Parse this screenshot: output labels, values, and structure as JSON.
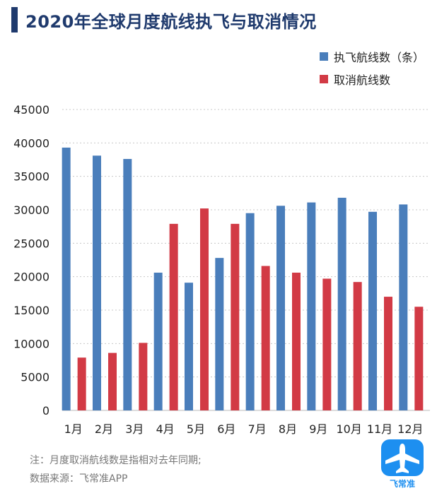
{
  "title": "2020年全球月度航线执飞与取消情况",
  "legend": [
    {
      "label": "执飞航线数（条）",
      "color": "#4a7ebb"
    },
    {
      "label": "取消航线数",
      "color": "#d23a45"
    }
  ],
  "footnote": {
    "note": "注：月度取消航线数是指相对去年同期;",
    "source": "数据来源：飞常准APP"
  },
  "logo": {
    "text": "飞常准",
    "icon": "airplane-icon"
  },
  "chart_data": {
    "type": "bar",
    "title": "2020年全球月度航线执飞与取消情况",
    "xlabel": "",
    "ylabel": "",
    "categories": [
      "1月",
      "2月",
      "3月",
      "4月",
      "5月",
      "6月",
      "7月",
      "8月",
      "9月",
      "10月",
      "11月",
      "12月"
    ],
    "series": [
      {
        "name": "执飞航线数（条）",
        "color": "#4a7ebb",
        "values": [
          39300,
          38100,
          37600,
          20600,
          19100,
          22800,
          29500,
          30600,
          31100,
          31800,
          29700,
          30800
        ]
      },
      {
        "name": "取消航线数",
        "color": "#d23a45",
        "values": [
          7900,
          8600,
          10100,
          27900,
          30200,
          27900,
          21600,
          20600,
          19700,
          19200,
          17000,
          15500
        ]
      }
    ],
    "ylim": [
      0,
      45000
    ],
    "yticks": [
      0,
      5000,
      10000,
      15000,
      20000,
      25000,
      30000,
      35000,
      40000,
      45000
    ],
    "grid": true,
    "legend_position": "top-right"
  }
}
